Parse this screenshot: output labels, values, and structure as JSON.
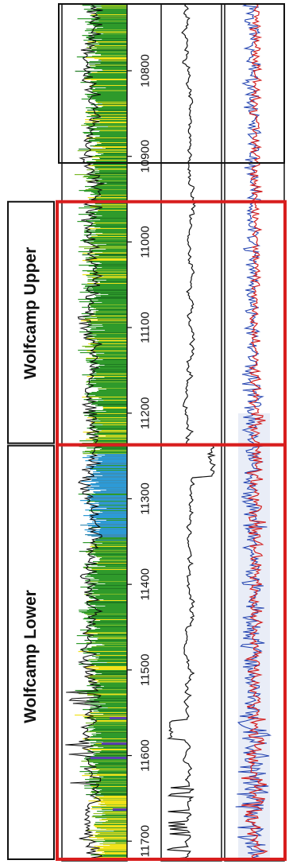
{
  "chart_data": {
    "type": "line",
    "title": "",
    "depth_axis": {
      "orientation": "horizontal",
      "range": [
        10722,
        11723
      ],
      "ticks": [
        10800,
        10900,
        11000,
        11100,
        11200,
        11300,
        11400,
        11500,
        11600,
        11700
      ],
      "tick_labels": [
        "10800",
        "10900",
        "11000",
        "11100",
        "11200",
        "11300",
        "11400",
        "11500",
        "11600",
        "11700"
      ]
    },
    "zones": [
      {
        "name": "Wolfcamp Upper",
        "top": 10953,
        "base": 11237
      },
      {
        "name": "Wolfcamp Lower",
        "top": 11237,
        "base": 11723
      }
    ],
    "tracks": [
      {
        "name": "",
        "kind": "filled-curve",
        "fill_colors": {
          "low": "#f1e21a",
          "mid": "#2f9a2b",
          "high": "#2d9ad6"
        }
      },
      {
        "name": "",
        "kind": "single-curve",
        "color": "#111111"
      },
      {
        "name": "",
        "kind": "dual-curve",
        "colors": [
          "#1f3fae",
          "#d42020"
        ],
        "band_color": "#dfe6f4"
      }
    ],
    "grid": false
  },
  "colors": {
    "zone_outline": "#d81e1e",
    "frame": "#111111"
  }
}
